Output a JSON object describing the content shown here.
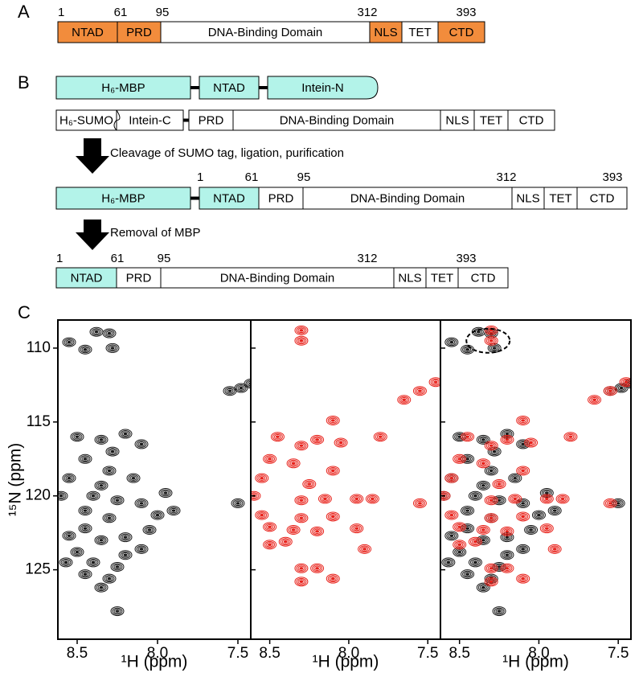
{
  "panel_a": {
    "label": "A",
    "positions": [
      1,
      61,
      95,
      312,
      393
    ],
    "domains": [
      {
        "label": "NTAD",
        "color": "#f28c3c"
      },
      {
        "label": "PRD",
        "color": "#f28c3c"
      },
      {
        "label": "DNA-Binding Domain",
        "color": "#ffffff"
      },
      {
        "label": "NLS",
        "color": "#f28c3c"
      },
      {
        "label": "TET",
        "color": "#ffffff"
      },
      {
        "label": "CTD",
        "color": "#f28c3c"
      }
    ]
  },
  "panel_b": {
    "label": "B",
    "rows": [
      {
        "domains": [
          {
            "label": "H₆-MBP",
            "color": "#b3f3e9"
          },
          {
            "label": "NTAD",
            "color": "#b3f3e9"
          },
          {
            "label": "Intein-N",
            "color": "#b3f3e9"
          }
        ]
      },
      {
        "domains": [
          {
            "label": "H₆-SUMO",
            "color": "#ffffff"
          },
          {
            "label": "Intein-C",
            "color": "#ffffff"
          },
          {
            "label": "PRD",
            "color": "#ffffff"
          },
          {
            "label": "DNA-Binding Domain",
            "color": "#ffffff"
          },
          {
            "label": "NLS",
            "color": "#ffffff"
          },
          {
            "label": "TET",
            "color": "#ffffff"
          },
          {
            "label": "CTD",
            "color": "#ffffff"
          }
        ]
      },
      {
        "positions": [
          1,
          61,
          95,
          312,
          393
        ],
        "domains": [
          {
            "label": "H₆-MBP",
            "color": "#b3f3e9"
          },
          {
            "label": "NTAD",
            "color": "#b3f3e9"
          },
          {
            "label": "PRD",
            "color": "#ffffff"
          },
          {
            "label": "DNA-Binding Domain",
            "color": "#ffffff"
          },
          {
            "label": "NLS",
            "color": "#ffffff"
          },
          {
            "label": "TET",
            "color": "#ffffff"
          },
          {
            "label": "CTD",
            "color": "#ffffff"
          }
        ]
      },
      {
        "positions": [
          1,
          61,
          95,
          312,
          393
        ],
        "domains": [
          {
            "label": "NTAD",
            "color": "#b3f3e9"
          },
          {
            "label": "PRD",
            "color": "#ffffff"
          },
          {
            "label": "DNA-Binding Domain",
            "color": "#ffffff"
          },
          {
            "label": "NLS",
            "color": "#ffffff"
          },
          {
            "label": "TET",
            "color": "#ffffff"
          },
          {
            "label": "CTD",
            "color": "#ffffff"
          }
        ]
      }
    ],
    "steps": [
      "Cleavage of SUMO tag, ligation, purification",
      "Removal of MBP"
    ]
  },
  "panel_c": {
    "label": "C"
  },
  "chart_data": [
    {
      "type": "scatter",
      "xlabel": "¹H (ppm)",
      "ylabel": "¹⁵N (ppm)",
      "xlim": [
        7.42,
        8.62
      ],
      "x_inverted": true,
      "ylim": [
        108.1,
        129.7
      ],
      "y_inverted": true,
      "xticks": [
        8.5,
        {
          "value": 8,
          "label": "8.0"
        },
        7.5
      ],
      "yticks": [
        110,
        115,
        120,
        125
      ],
      "ytick_labels": true,
      "series": [
        {
          "color": "#1a1a1a",
          "x": [
            8.55,
            8.38,
            8.3,
            8.28,
            8.45,
            7.48,
            7.55,
            7.42,
            8.5,
            8.35,
            8.2,
            8.1,
            8.45,
            8.3,
            8.55,
            8.6,
            8.4,
            8.25,
            8.1,
            7.95,
            8.0,
            8.3,
            8.45,
            8.55,
            8.35,
            8.2,
            8.05,
            8.5,
            8.4,
            8.25,
            8.45,
            8.3,
            8.35,
            7.9,
            7.5,
            8.25,
            8.15,
            8.35,
            8.45,
            8.2,
            8.1,
            8.57,
            8.28
          ],
          "values": [
            109.6,
            108.9,
            109.0,
            110.0,
            110.1,
            112.7,
            112.9,
            112.4,
            116.0,
            116.2,
            115.8,
            116.5,
            117.5,
            118.3,
            118.8,
            120.0,
            120.0,
            120.3,
            120.5,
            119.8,
            121.3,
            121.5,
            122.2,
            122.7,
            123.0,
            122.8,
            122.3,
            123.8,
            124.5,
            124.8,
            125.3,
            125.6,
            126.2,
            121.0,
            120.5,
            127.8,
            118.8,
            119.3,
            121.0,
            124.0,
            123.6,
            124.5,
            117.0
          ]
        }
      ]
    },
    {
      "type": "scatter",
      "xlabel": "¹H (ppm)",
      "xlim": [
        7.42,
        8.62
      ],
      "x_inverted": true,
      "ylim": [
        108.1,
        129.7
      ],
      "y_inverted": true,
      "xticks": [
        8.5,
        {
          "value": 8,
          "label": "8.0"
        },
        7.5
      ],
      "yticks": [
        110,
        115,
        120,
        125
      ],
      "ytick_labels": false,
      "series": [
        {
          "color": "#e8221b",
          "x": [
            8.3,
            8.3,
            7.45,
            7.55,
            7.65,
            8.45,
            8.3,
            8.1,
            8.2,
            8.05,
            7.8,
            8.5,
            8.35,
            8.1,
            8.55,
            8.25,
            8.6,
            8.3,
            8.15,
            7.95,
            7.85,
            7.55,
            8.55,
            8.3,
            8.1,
            8.5,
            8.35,
            8.2,
            7.95,
            8.5,
            8.4,
            7.9,
            8.3,
            8.2,
            8.3,
            8.1
          ],
          "values": [
            108.8,
            109.5,
            112.3,
            112.9,
            113.5,
            116.0,
            116.6,
            114.9,
            116.2,
            116.4,
            116.0,
            117.5,
            117.8,
            118.3,
            118.8,
            119.2,
            120.0,
            120.3,
            120.2,
            120.2,
            120.2,
            120.5,
            121.3,
            121.5,
            121.4,
            122.1,
            122.3,
            122.4,
            122.2,
            123.3,
            123.1,
            123.6,
            124.9,
            124.9,
            125.8,
            125.6
          ]
        }
      ]
    },
    {
      "type": "scatter",
      "xlabel": "¹H (ppm)",
      "xlim": [
        7.42,
        8.62
      ],
      "x_inverted": true,
      "ylim": [
        108.1,
        129.7
      ],
      "y_inverted": true,
      "xticks": [
        8.5,
        {
          "value": 8,
          "label": "8.0"
        },
        7.5
      ],
      "yticks": [
        110,
        115,
        120,
        125
      ],
      "ytick_labels": false,
      "series": [
        {
          "color": "#1a1a1a",
          "x": [
            8.55,
            8.38,
            8.3,
            8.28,
            8.45,
            7.48,
            7.55,
            7.42,
            8.5,
            8.35,
            8.2,
            8.1,
            8.45,
            8.3,
            8.55,
            8.6,
            8.4,
            8.25,
            8.1,
            7.95,
            8.0,
            8.3,
            8.45,
            8.55,
            8.35,
            8.2,
            8.05,
            8.5,
            8.4,
            8.25,
            8.45,
            8.3,
            8.35,
            7.9,
            7.5,
            8.25,
            8.15,
            8.35,
            8.45,
            8.2,
            8.1,
            8.57,
            8.28
          ],
          "values": [
            109.6,
            108.9,
            109.0,
            110.0,
            110.1,
            112.7,
            112.9,
            112.4,
            116.0,
            116.2,
            115.8,
            116.5,
            117.5,
            118.3,
            118.8,
            120.0,
            120.0,
            120.3,
            120.5,
            119.8,
            121.3,
            121.5,
            122.2,
            122.7,
            123.0,
            122.8,
            122.3,
            123.8,
            124.5,
            124.8,
            125.3,
            125.6,
            126.2,
            121.0,
            120.5,
            127.8,
            118.8,
            119.3,
            121.0,
            124.0,
            123.6,
            124.5,
            117.0
          ]
        },
        {
          "color": "#e8221b",
          "x": [
            8.3,
            8.3,
            7.45,
            7.55,
            7.65,
            8.45,
            8.3,
            8.1,
            8.2,
            8.05,
            7.8,
            8.5,
            8.35,
            8.1,
            8.55,
            8.25,
            8.6,
            8.3,
            8.15,
            7.95,
            7.85,
            7.55,
            8.55,
            8.3,
            8.1,
            8.5,
            8.35,
            8.2,
            7.95,
            8.5,
            8.4,
            7.9,
            8.3,
            8.2,
            8.3,
            8.1
          ],
          "values": [
            108.8,
            109.5,
            112.3,
            112.9,
            113.5,
            116.0,
            116.6,
            114.9,
            116.2,
            116.4,
            116.0,
            117.5,
            117.8,
            118.3,
            118.8,
            119.2,
            120.0,
            120.3,
            120.2,
            120.2,
            120.2,
            120.5,
            121.3,
            121.5,
            121.4,
            122.1,
            122.3,
            122.4,
            122.2,
            123.3,
            123.1,
            123.6,
            124.9,
            124.9,
            125.8,
            125.6
          ]
        }
      ]
    }
  ]
}
